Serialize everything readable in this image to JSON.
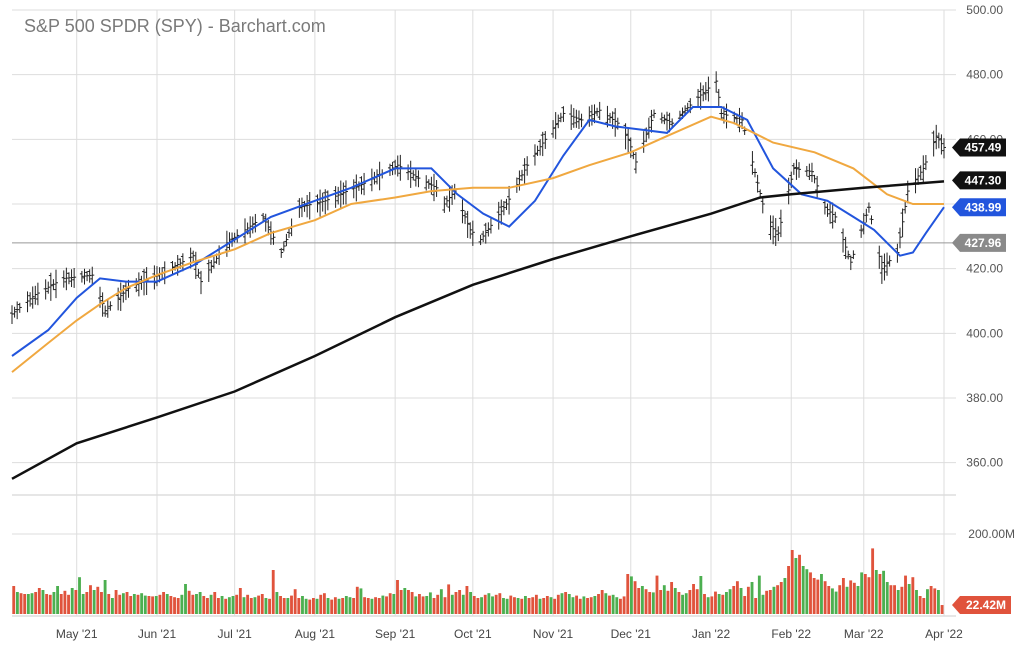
{
  "title": "S&P 500 SPDR (SPY) - Barchart.com",
  "colors": {
    "price_bars": "#222222",
    "ma_fast": "#2255dd",
    "ma_mid": "#f0a840",
    "ma_slow": "#111111",
    "volume_up": "#4caf50",
    "volume_down": "#e0533c",
    "grid": "#dddddd",
    "reference_line": "#999999"
  },
  "chart_data": [
    {
      "type": "ohlc",
      "panel": "price",
      "ylim": [
        350,
        500
      ],
      "yticks": [
        "500.00",
        "480.00",
        "460.00",
        "440.00",
        "420.00",
        "400.00",
        "380.00",
        "360.00"
      ],
      "y_tick_values": [
        500,
        480,
        460,
        440,
        420,
        400,
        380,
        360
      ],
      "x_tick_labels": [
        "May '21",
        "Jun '21",
        "Jul '21",
        "Aug '21",
        "Sep '21",
        "Oct '21",
        "Nov '21",
        "Dec '21",
        "Jan '22",
        "Feb '22",
        "Mar '22",
        "Apr '22"
      ],
      "x_tick_dates": [
        "2021-05-01",
        "2021-06-01",
        "2021-07-01",
        "2021-08-01",
        "2021-09-01",
        "2021-10-01",
        "2021-11-01",
        "2021-12-01",
        "2022-01-01",
        "2022-02-01",
        "2022-03-01",
        "2022-04-01"
      ],
      "date_range": [
        "2021-04-06",
        "2022-04-01"
      ],
      "close_series": {
        "dates": [
          "2021-04-06",
          "2021-04-15",
          "2021-04-26",
          "2021-05-07",
          "2021-05-12",
          "2021-05-21",
          "2021-06-04",
          "2021-06-15",
          "2021-06-18",
          "2021-06-28",
          "2021-07-12",
          "2021-07-19",
          "2021-07-26",
          "2021-08-05",
          "2021-08-19",
          "2021-09-02",
          "2021-09-10",
          "2021-09-17",
          "2021-09-20",
          "2021-09-24",
          "2021-09-30",
          "2021-10-04",
          "2021-10-14",
          "2021-10-22",
          "2021-11-05",
          "2021-11-12",
          "2021-11-19",
          "2021-11-26",
          "2021-11-30",
          "2021-12-03",
          "2021-12-10",
          "2021-12-17",
          "2021-12-27",
          "2022-01-03",
          "2022-01-05",
          "2022-01-13",
          "2022-01-21",
          "2022-01-24",
          "2022-01-27",
          "2022-02-02",
          "2022-02-09",
          "2022-02-14",
          "2022-02-18",
          "2022-02-24",
          "2022-03-03",
          "2022-03-08",
          "2022-03-14",
          "2022-03-18",
          "2022-03-24",
          "2022-03-29",
          "2022-04-01"
        ],
        "values": [
          406,
          412,
          417,
          418,
          407,
          414,
          419,
          424,
          416,
          428,
          436,
          425,
          439,
          441,
          446,
          452,
          448,
          445,
          440,
          444,
          432,
          429,
          440,
          452,
          468,
          466,
          469,
          465,
          460,
          453,
          468,
          465,
          473,
          478,
          468,
          466,
          440,
          433,
          431,
          451,
          450,
          439,
          436,
          422,
          439,
          420,
          425,
          444,
          451,
          461,
          457.49
        ]
      },
      "moving_averages": [
        {
          "color_key": "ma_fast",
          "dates": [
            "2021-04-06",
            "2021-04-20",
            "2021-05-01",
            "2021-05-10",
            "2021-05-20",
            "2021-06-01",
            "2021-06-15",
            "2021-07-01",
            "2021-07-15",
            "2021-08-01",
            "2021-08-15",
            "2021-09-01",
            "2021-09-15",
            "2021-09-25",
            "2021-10-05",
            "2021-10-15",
            "2021-10-25",
            "2021-11-05",
            "2021-11-15",
            "2021-11-25",
            "2021-12-05",
            "2021-12-15",
            "2021-12-25",
            "2022-01-05",
            "2022-01-15",
            "2022-01-25",
            "2022-02-05",
            "2022-02-15",
            "2022-02-25",
            "2022-03-05",
            "2022-03-15",
            "2022-03-20",
            "2022-03-25",
            "2022-04-01"
          ],
          "values": [
            393,
            401,
            411,
            417,
            416,
            416,
            421,
            429,
            436,
            441,
            445,
            451,
            451,
            443,
            437,
            433,
            441,
            455,
            466,
            464,
            463,
            462,
            470,
            470,
            466,
            451,
            443,
            441,
            436,
            432,
            424,
            425,
            431,
            439
          ]
        },
        {
          "color_key": "ma_mid",
          "dates": [
            "2021-04-06",
            "2021-04-20",
            "2021-05-01",
            "2021-05-10",
            "2021-05-20",
            "2021-06-01",
            "2021-06-15",
            "2021-07-01",
            "2021-07-15",
            "2021-08-01",
            "2021-08-15",
            "2021-09-01",
            "2021-09-15",
            "2021-10-01",
            "2021-10-15",
            "2021-11-01",
            "2021-11-15",
            "2021-12-01",
            "2021-12-15",
            "2022-01-01",
            "2022-01-10",
            "2022-01-25",
            "2022-02-10",
            "2022-02-25",
            "2022-03-10",
            "2022-03-20",
            "2022-03-28",
            "2022-04-01"
          ],
          "values": [
            388,
            397,
            404,
            409,
            414,
            418,
            422,
            426,
            431,
            435,
            440,
            442,
            444,
            445,
            445,
            448,
            452,
            456,
            461,
            467,
            465,
            459,
            456,
            451,
            443,
            440,
            440,
            440
          ]
        },
        {
          "color_key": "ma_slow",
          "dates": [
            "2021-04-06",
            "2021-05-01",
            "2021-06-01",
            "2021-07-01",
            "2021-08-01",
            "2021-09-01",
            "2021-10-01",
            "2021-11-01",
            "2021-12-01",
            "2022-01-01",
            "2022-01-20",
            "2022-02-01",
            "2022-03-01",
            "2022-04-01"
          ],
          "values": [
            355,
            366,
            374,
            382,
            393,
            405,
            415,
            423,
            430,
            437,
            442,
            443,
            445,
            447
          ]
        }
      ],
      "price_labels": [
        {
          "text": "457.49",
          "value": 457.49,
          "bg": "#111111",
          "fg": "#ffffff"
        },
        {
          "text": "447.30",
          "value": 447.3,
          "bg": "#111111",
          "fg": "#ffffff"
        },
        {
          "text": "438.99",
          "value": 438.99,
          "bg": "#2255dd",
          "fg": "#ffffff"
        },
        {
          "text": "427.96",
          "value": 427.96,
          "bg": "#8a8a8a",
          "fg": "#ffffff"
        }
      ],
      "reference_value": 427.96
    },
    {
      "type": "bar",
      "panel": "volume",
      "ylim": [
        0,
        240
      ],
      "yticks": [
        "200.00M"
      ],
      "y_tick_values": [
        200
      ],
      "last_label": "22.42M",
      "last_value": 22.42,
      "note": "daily volume in millions, color by up/down day",
      "values": [
        70,
        55,
        52,
        50,
        50,
        52,
        55,
        65,
        60,
        50,
        48,
        55,
        70,
        50,
        58,
        48,
        65,
        60,
        92,
        50,
        55,
        72,
        60,
        68,
        55,
        85,
        50,
        40,
        60,
        48,
        52,
        55,
        45,
        50,
        48,
        52,
        46,
        45,
        44,
        45,
        48,
        55,
        50,
        45,
        42,
        40,
        48,
        75,
        58,
        48,
        50,
        55,
        45,
        40,
        48,
        55,
        40,
        45,
        38,
        42,
        45,
        48,
        65,
        42,
        48,
        40,
        42,
        46,
        50,
        40,
        38,
        110,
        55,
        45,
        40,
        40,
        46,
        62,
        40,
        45,
        38,
        36,
        40,
        38,
        48,
        52,
        40,
        36,
        42,
        38,
        40,
        45,
        42,
        40,
        68,
        64,
        42,
        40,
        38,
        42,
        40,
        46,
        44,
        52,
        50,
        85,
        60,
        65,
        60,
        55,
        44,
        50,
        44,
        45,
        54,
        40,
        48,
        62,
        42,
        74,
        48,
        55,
        60,
        48,
        70,
        55,
        45,
        40,
        42,
        48,
        52,
        44,
        48,
        52,
        40,
        38,
        46,
        42,
        40,
        38,
        45,
        40,
        42,
        48,
        38,
        40,
        45,
        42,
        38,
        48,
        52,
        55,
        50,
        42,
        46,
        38,
        44,
        40,
        42,
        45,
        50,
        60,
        52,
        46,
        48,
        42,
        38,
        44,
        100,
        94,
        82,
        65,
        70,
        62,
        55,
        54,
        96,
        60,
        72,
        58,
        80,
        65,
        55,
        48,
        52,
        60,
        75,
        62,
        95,
        50,
        42,
        44,
        56,
        50,
        48,
        55,
        62,
        70,
        82,
        65,
        45,
        68,
        80,
        40,
        96,
        48,
        58,
        60,
        68,
        72,
        80,
        90,
        120,
        160,
        140,
        148,
        120,
        112,
        104,
        90,
        86,
        100,
        82,
        70,
        64,
        56,
        72,
        90,
        68,
        84,
        78,
        70,
        104,
        100,
        92,
        164,
        110,
        100,
        108,
        80,
        72,
        72,
        60,
        68,
        96,
        75,
        92,
        60,
        45,
        40,
        62,
        70,
        64,
        60,
        22.42
      ],
      "up_down": "dudduuddudduuddduduudduddududdudduduuddudduddduudduuddudduduudduddudduddudduddduudduddudduduudduddudduddudduddudduuddudduddududduduudduuddududdduddudduduudduddudduduuddduddudduddudduduudddududduduuddudduduudduddudduduudd"
    }
  ]
}
